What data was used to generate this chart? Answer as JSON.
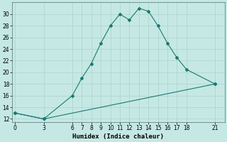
{
  "xlabel": "Humidex (Indice chaleur)",
  "background_color": "#c5e8e5",
  "grid_color": "#b0d5d0",
  "line_color": "#1a7a6e",
  "line1_x": [
    0,
    3,
    6,
    7,
    8,
    9,
    10,
    11,
    12,
    13,
    14,
    15,
    16,
    17,
    18,
    21
  ],
  "line1_y": [
    13.0,
    12.0,
    16.0,
    19.0,
    21.5,
    25.0,
    28.0,
    30.0,
    29.0,
    31.0,
    30.5,
    28.0,
    25.0,
    22.5,
    20.5,
    18.0
  ],
  "line2_x": [
    0,
    3,
    21
  ],
  "line2_y": [
    13.0,
    12.0,
    18.0
  ],
  "xticks": [
    0,
    3,
    6,
    7,
    8,
    9,
    10,
    11,
    12,
    13,
    14,
    15,
    16,
    17,
    18,
    21
  ],
  "yticks": [
    12,
    14,
    16,
    18,
    20,
    22,
    24,
    26,
    28,
    30
  ],
  "ylim": [
    11.5,
    32
  ],
  "xlim": [
    -0.3,
    22.0
  ]
}
